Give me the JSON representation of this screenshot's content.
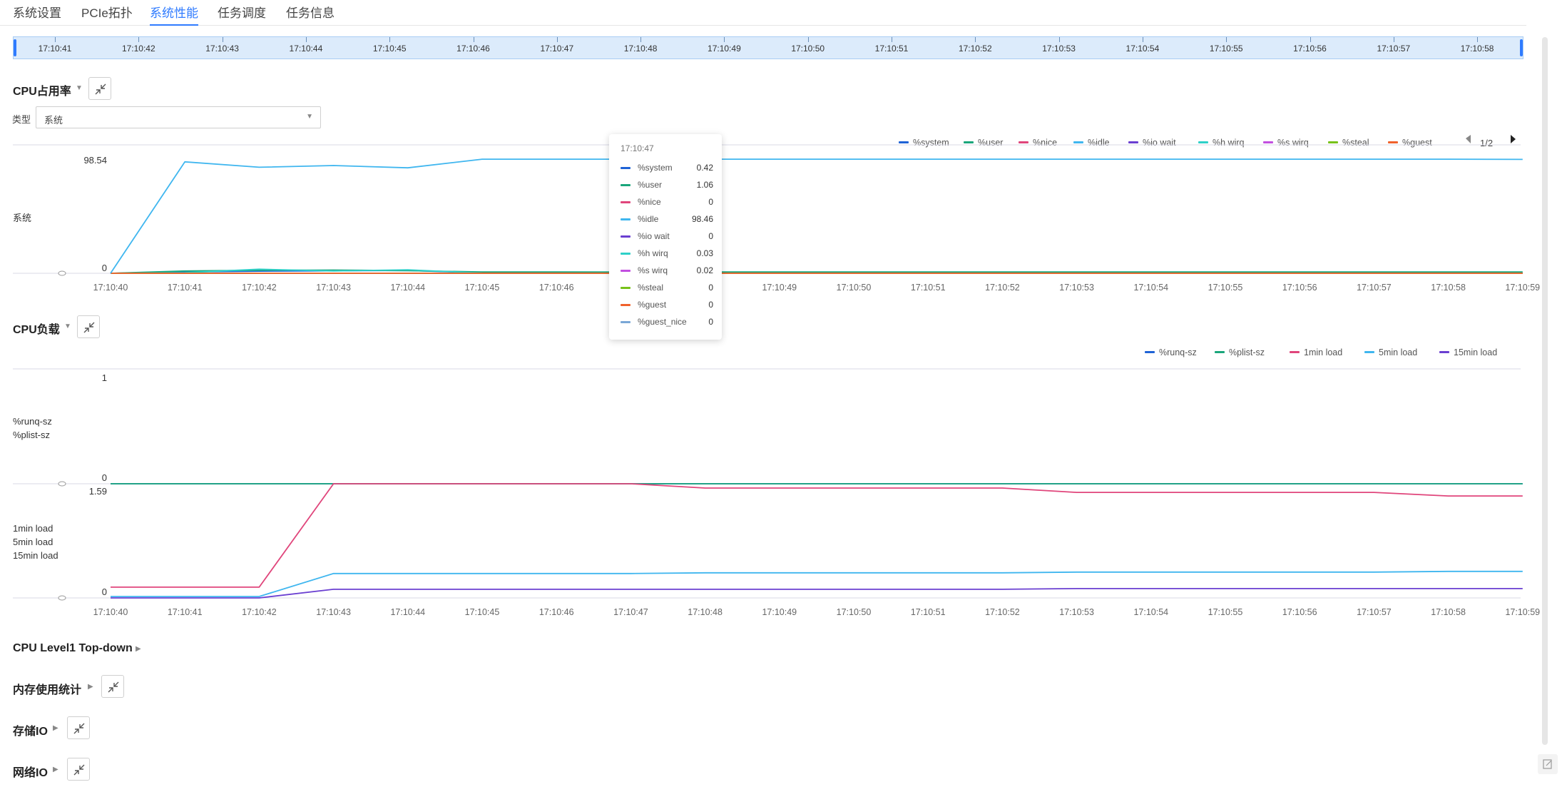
{
  "tabs": [
    {
      "label": "系统设置",
      "active": false
    },
    {
      "label": "PCIe拓扑",
      "active": false
    },
    {
      "label": "系统性能",
      "active": true
    },
    {
      "label": "任务调度",
      "active": false
    },
    {
      "label": "任务信息",
      "active": false
    }
  ],
  "timeline": {
    "labels": [
      "17:10:41",
      "17:10:42",
      "17:10:43",
      "17:10:44",
      "17:10:45",
      "17:10:46",
      "17:10:47",
      "17:10:48",
      "17:10:49",
      "17:10:50",
      "17:10:51",
      "17:10:52",
      "17:10:53",
      "17:10:54",
      "17:10:55",
      "17:10:56",
      "17:10:57",
      "17:10:58"
    ]
  },
  "cpu_usage": {
    "title": "CPU占用率",
    "type_label": "类型",
    "type_value": "系统",
    "pager": "1/2",
    "tooltip": {
      "time": "17:10:47",
      "rows": [
        {
          "name": "%system",
          "value": "0.42",
          "color": "#1f63d6"
        },
        {
          "name": "%user",
          "value": "1.06",
          "color": "#1aa67b"
        },
        {
          "name": "%nice",
          "value": "0",
          "color": "#e0457b"
        },
        {
          "name": "%idle",
          "value": "98.46",
          "color": "#3fb6ef"
        },
        {
          "name": "%io wait",
          "value": "0",
          "color": "#6a3fd1"
        },
        {
          "name": "%h wirq",
          "value": "0.03",
          "color": "#2ed0c8"
        },
        {
          "name": "%s wirq",
          "value": "0.02",
          "color": "#c24fe0"
        },
        {
          "name": "%steal",
          "value": "0",
          "color": "#77c21a"
        },
        {
          "name": "%guest",
          "value": "0",
          "color": "#f0622c"
        },
        {
          "name": "%guest_nice",
          "value": "0",
          "color": "#7aa7d6"
        }
      ]
    }
  },
  "cpu_load": {
    "title": "CPU负载"
  },
  "sections": [
    {
      "title": "CPU Level1 Top-down",
      "has_button": false
    },
    {
      "title": "内存使用统计",
      "has_button": true
    },
    {
      "title": "存储IO",
      "has_button": true
    },
    {
      "title": "网络IO",
      "has_button": true
    }
  ],
  "chart_data": [
    {
      "type": "line",
      "title": "CPU占用率",
      "ylabel": "系统",
      "y_ticks": [
        "98.54",
        "0"
      ],
      "ylim": [
        0,
        98.54
      ],
      "x": [
        "17:10:40",
        "17:10:41",
        "17:10:42",
        "17:10:43",
        "17:10:44",
        "17:10:45",
        "17:10:46",
        "17:10:47",
        "17:10:48",
        "17:10:49",
        "17:10:50",
        "17:10:51",
        "17:10:52",
        "17:10:53",
        "17:10:54",
        "17:10:55",
        "17:10:56",
        "17:10:57",
        "17:10:58",
        "17:10:59"
      ],
      "x_tick_labels": [
        "17:10:40",
        "17:10:41",
        "17:10:42",
        "17:10:43",
        "17:10:44",
        "17:10:45",
        "17:10:46",
        "",
        "",
        "17:10:49",
        "17:10:50",
        "17:10:51",
        "17:10:52",
        "17:10:53",
        "17:10:54",
        "17:10:55",
        "17:10:56",
        "17:10:57",
        "17:10:58",
        "17:10:59"
      ],
      "legend": [
        "%system",
        "%user",
        "%nice",
        "%idle",
        "%io wait",
        "%h wirq",
        "%s wirq",
        "%steal",
        "%guest"
      ],
      "legend_placement": "top-right",
      "series": [
        {
          "name": "%system",
          "color": "#1f63d6",
          "values": [
            0,
            1.2,
            1.8,
            2.1,
            2.4,
            0.4,
            0.4,
            0.42,
            0.4,
            0.4,
            0.4,
            0.4,
            0.4,
            0.4,
            0.4,
            0.4,
            0.4,
            0.4,
            0.4,
            0.4
          ]
        },
        {
          "name": "%user",
          "color": "#1aa67b",
          "values": [
            0,
            2.0,
            2.6,
            2.8,
            2.3,
            1.1,
            1.1,
            1.06,
            1.1,
            1.1,
            1.1,
            1.1,
            1.1,
            1.1,
            1.1,
            1.1,
            1.1,
            1.1,
            1.1,
            1.1
          ]
        },
        {
          "name": "%nice",
          "color": "#e0457b",
          "values": [
            0,
            0,
            0,
            0,
            0,
            0,
            0,
            0,
            0,
            0,
            0,
            0,
            0,
            0,
            0,
            0,
            0,
            0,
            0,
            0
          ]
        },
        {
          "name": "%idle",
          "color": "#3fb6ef",
          "values": [
            0,
            96.2,
            91.5,
            93.0,
            91.0,
            98.5,
            98.5,
            98.46,
            98.5,
            98.5,
            98.5,
            98.5,
            98.5,
            98.5,
            98.5,
            98.5,
            98.5,
            98.5,
            98.5,
            98.3
          ]
        },
        {
          "name": "%io wait",
          "color": "#6a3fd1",
          "values": [
            0,
            0,
            0,
            0,
            0,
            0,
            0,
            0,
            0,
            0,
            0,
            0,
            0,
            0,
            0,
            0,
            0,
            0,
            0,
            0
          ]
        },
        {
          "name": "%h wirq",
          "color": "#2ed0c8",
          "values": [
            0,
            0.5,
            3.5,
            2.0,
            3.0,
            0.1,
            0.05,
            0.03,
            0.03,
            0.03,
            0.03,
            0.03,
            0.03,
            0.03,
            0.03,
            0.03,
            0.03,
            0.03,
            0.03,
            0.03
          ]
        },
        {
          "name": "%s wirq",
          "color": "#c24fe0",
          "values": [
            0,
            0,
            0,
            0,
            0,
            0,
            0.02,
            0.02,
            0.02,
            0.02,
            0.02,
            0.02,
            0.02,
            0.02,
            0.02,
            0.02,
            0.02,
            0.02,
            0.02,
            0.02
          ]
        },
        {
          "name": "%steal",
          "color": "#77c21a",
          "values": [
            0,
            0,
            0,
            0,
            0,
            0,
            0,
            0,
            0,
            0,
            0,
            0,
            0,
            0,
            0,
            0,
            0,
            0,
            0,
            0
          ]
        },
        {
          "name": "%guest",
          "color": "#f0622c",
          "values": [
            0,
            0,
            0,
            0,
            0,
            0,
            0,
            0,
            0,
            0,
            0,
            0,
            0,
            0,
            0,
            0,
            0,
            0,
            0,
            0
          ]
        }
      ]
    },
    {
      "type": "line",
      "title": "CPU负载",
      "x": [
        "17:10:40",
        "17:10:41",
        "17:10:42",
        "17:10:43",
        "17:10:44",
        "17:10:45",
        "17:10:46",
        "17:10:47",
        "17:10:48",
        "17:10:49",
        "17:10:50",
        "17:10:51",
        "17:10:52",
        "17:10:53",
        "17:10:54",
        "17:10:55",
        "17:10:56",
        "17:10:57",
        "17:10:58",
        "17:10:59"
      ],
      "legend": [
        "%runq-sz",
        "%plist-sz",
        "1min load",
        "5min load",
        "15min load"
      ],
      "legend_placement": "top-right",
      "panels": [
        {
          "ylabels": [
            "%runq-sz",
            "%plist-sz"
          ],
          "y_ticks": [
            "1",
            "0"
          ],
          "ylim": [
            0,
            1
          ],
          "series": [
            {
              "name": "%runq-sz",
              "color": "#1f63d6",
              "values": [
                0,
                0,
                0,
                0,
                0,
                0,
                0,
                0,
                0,
                0,
                0,
                0,
                0,
                0,
                0,
                0,
                0,
                0,
                0,
                0
              ]
            },
            {
              "name": "%plist-sz",
              "color": "#1aa67b",
              "values": [
                0,
                0,
                0,
                0,
                0,
                0,
                0,
                0,
                0,
                0,
                0,
                0,
                0,
                0,
                0,
                0,
                0,
                0,
                0,
                0
              ]
            }
          ]
        },
        {
          "ylabels": [
            "1min load",
            "5min load",
            "15min load"
          ],
          "y_ticks": [
            "1.59",
            "0"
          ],
          "ylim": [
            0,
            1.59
          ],
          "series": [
            {
              "name": "1min load",
              "color": "#e0457b",
              "values": [
                0.15,
                0.15,
                0.15,
                1.59,
                1.59,
                1.59,
                1.59,
                1.59,
                1.53,
                1.53,
                1.53,
                1.53,
                1.53,
                1.47,
                1.47,
                1.47,
                1.47,
                1.47,
                1.42,
                1.42
              ]
            },
            {
              "name": "5min load",
              "color": "#3fb6ef",
              "values": [
                0.02,
                0.02,
                0.02,
                0.34,
                0.34,
                0.34,
                0.34,
                0.34,
                0.35,
                0.35,
                0.35,
                0.35,
                0.35,
                0.36,
                0.36,
                0.36,
                0.36,
                0.36,
                0.37,
                0.37
              ]
            },
            {
              "name": "15min load",
              "color": "#6a3fd1",
              "values": [
                0,
                0,
                0,
                0.12,
                0.12,
                0.12,
                0.12,
                0.12,
                0.12,
                0.12,
                0.12,
                0.12,
                0.12,
                0.13,
                0.13,
                0.13,
                0.13,
                0.13,
                0.13,
                0.13
              ]
            }
          ]
        }
      ]
    }
  ]
}
